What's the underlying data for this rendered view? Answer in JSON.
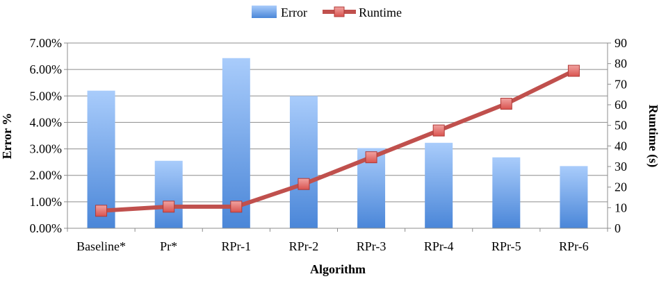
{
  "chart_data": {
    "type": "bar",
    "categories": [
      "Baseline*",
      "Pr*",
      "RPr-1",
      "RPr-2",
      "RPr-3",
      "RPr-4",
      "RPr-5",
      "RPr-6"
    ],
    "series": [
      {
        "name": "Error",
        "type": "bar",
        "axis": "left",
        "values": [
          0.052,
          0.0255,
          0.0643,
          0.05,
          0.0303,
          0.0323,
          0.0268,
          0.0235
        ],
        "color": "#4a86d8"
      },
      {
        "name": "Runtime",
        "type": "line",
        "axis": "right",
        "values": [
          8.5,
          10.5,
          10.5,
          21.5,
          34.5,
          47.5,
          60.5,
          76.5
        ],
        "color": "#c0504d"
      }
    ],
    "xlabel": "Algorithm",
    "ylabel": "Error %",
    "y2label": "Runtime (s)",
    "ylim": [
      0,
      0.07
    ],
    "y2lim": [
      0,
      90
    ],
    "yticks": [
      "0.00%",
      "1.00%",
      "2.00%",
      "3.00%",
      "4.00%",
      "5.00%",
      "6.00%",
      "7.00%"
    ],
    "y2ticks": [
      "0",
      "10",
      "20",
      "30",
      "40",
      "50",
      "60",
      "70",
      "80",
      "90"
    ],
    "grid": true,
    "legend": "top-center"
  }
}
